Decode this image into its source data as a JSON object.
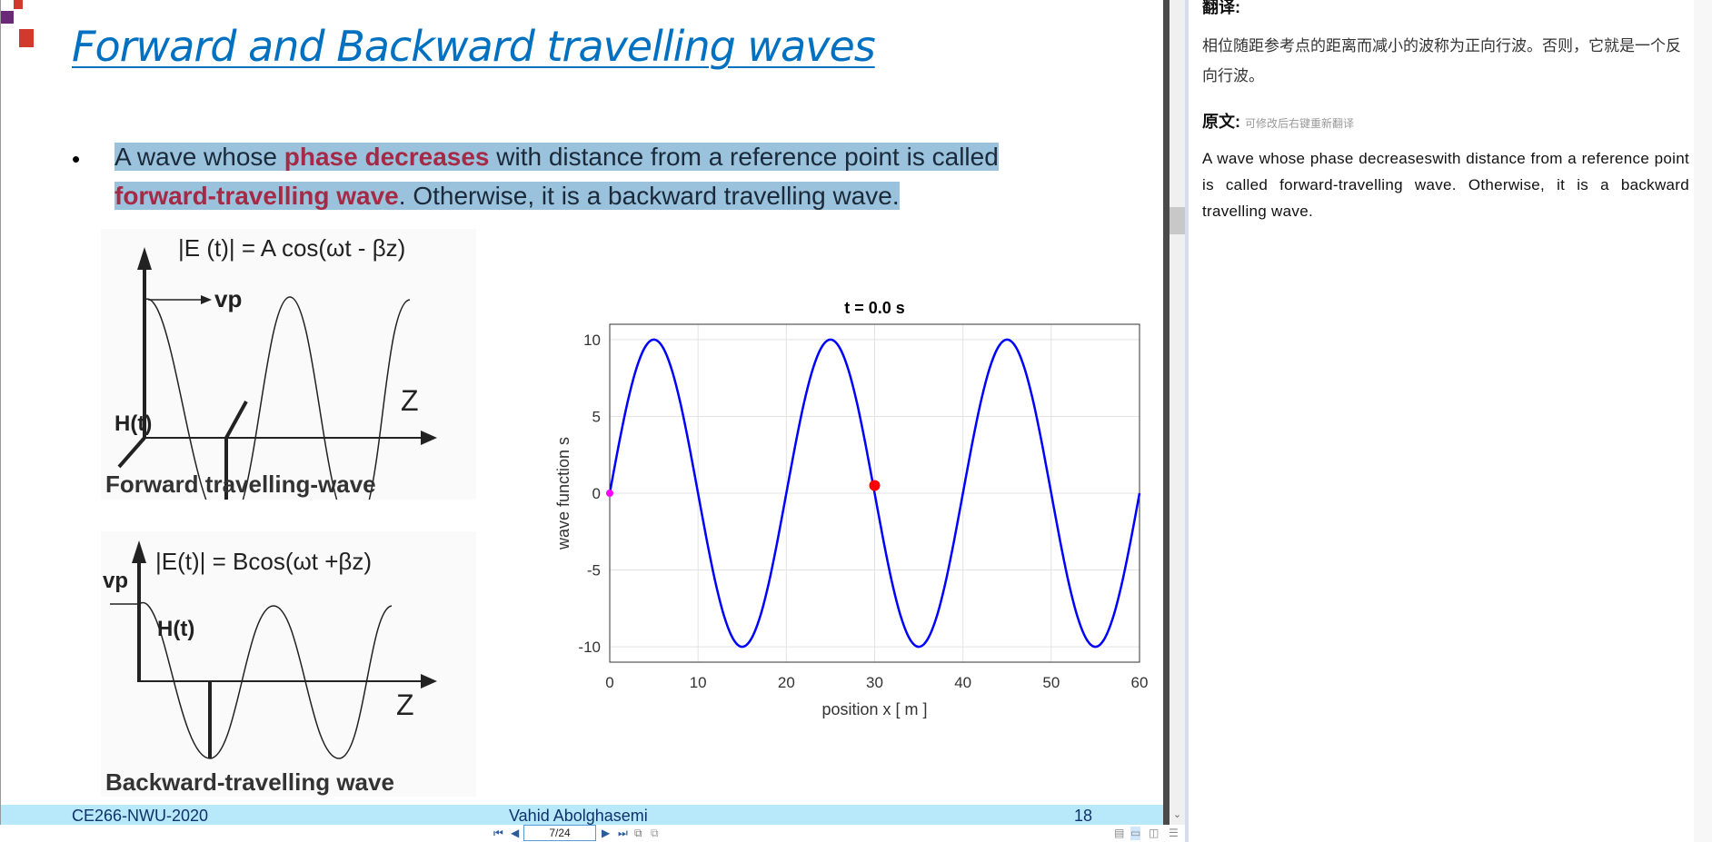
{
  "slide": {
    "title": "Forward and Backward travelling waves",
    "bullet": {
      "t1": "A wave whose ",
      "t2": "phase decreases",
      "t3": " with distance from a reference point is called ",
      "t4": "forward-travelling wave",
      "t5": ". Otherwise, it is a backward travelling wave."
    },
    "figure_forward": {
      "equation": "|E (t)| = A cos(ωt - βz)",
      "vp": "vp",
      "z": "Z",
      "h": "H(t)",
      "caption": "Forward travelling-wave"
    },
    "figure_backward": {
      "equation": "|E(t)| = Bcos(ωt +βz)",
      "vp": "vp",
      "z": "Z",
      "h": "H(t)",
      "caption": "Backward-travelling wave"
    },
    "footer": {
      "left": "CE266-NWU-2020",
      "center": "Vahid Abolghasemi",
      "page": "18"
    }
  },
  "chart_data": {
    "type": "line",
    "title": "t =  0.0   s",
    "xlabel": "position  x  [ m ]",
    "ylabel": "wave function  s",
    "xlim": [
      0,
      60
    ],
    "ylim": [
      -11,
      11
    ],
    "xticks": [
      0,
      10,
      20,
      30,
      40,
      50,
      60
    ],
    "yticks": [
      -10,
      -5,
      0,
      5,
      10
    ],
    "grid": true,
    "series": [
      {
        "color": "#0000ff",
        "x": [
          0,
          1,
          2,
          3,
          4,
          5,
          6,
          7,
          8,
          9,
          10,
          11,
          12,
          13,
          14,
          15,
          16,
          17,
          18,
          19,
          20,
          21,
          22,
          23,
          24,
          25,
          26,
          27,
          28,
          29,
          30,
          31,
          32,
          33,
          34,
          35,
          36,
          37,
          38,
          39,
          40,
          41,
          42,
          43,
          44,
          45,
          46,
          47,
          48,
          49,
          50,
          51,
          52,
          53,
          54,
          55,
          56,
          57,
          58,
          59,
          60
        ],
        "y": [
          0,
          3.09,
          5.88,
          8.09,
          9.51,
          10,
          9.51,
          8.09,
          5.88,
          3.09,
          0,
          -3.09,
          -5.88,
          -8.09,
          -9.51,
          -10,
          -9.51,
          -8.09,
          -5.88,
          -3.09,
          0,
          3.09,
          5.88,
          8.09,
          9.51,
          10,
          9.51,
          8.09,
          5.88,
          3.09,
          0,
          -3.09,
          -5.88,
          -8.09,
          -9.51,
          -10,
          -9.51,
          -8.09,
          -5.88,
          -3.09,
          0,
          3.09,
          5.88,
          8.09,
          9.51,
          10,
          9.51,
          8.09,
          5.88,
          3.09,
          0,
          -3.09,
          -5.88,
          -8.09,
          -9.51,
          -10,
          -9.51,
          -8.09,
          -5.88,
          -3.09,
          0
        ]
      }
    ],
    "markers": [
      {
        "x": 0,
        "y": 0,
        "color": "#ff00ff"
      },
      {
        "x": 30,
        "y": 0.5,
        "color": "#ff0000"
      }
    ]
  },
  "toolbar": {
    "page_value": "7/24",
    "icons": [
      "first-page-icon",
      "prev-page-icon",
      "next-page-icon",
      "last-page-icon",
      "add-page-icon",
      "remove-page-icon",
      "single-page-icon",
      "continuous-icon",
      "two-page-icon",
      "split-icon"
    ]
  },
  "panel": {
    "translation_heading": "翻译:",
    "translation": "相位随距参考点的距离而减小的波称为正向行波。否则，它就是一个反向行波。",
    "original_heading": "原文:",
    "original_hint": "可修改后右键重新翻译",
    "original": "A wave whose phase decreaseswith distance from a reference point is called forward-travelling wave. Otherwise, it is a backward travelling wave."
  },
  "colors": {
    "title": "#0070c0",
    "highlight": "#9bc2dc",
    "emphasis": "#a52a45",
    "footer": "#b8e9fb"
  }
}
